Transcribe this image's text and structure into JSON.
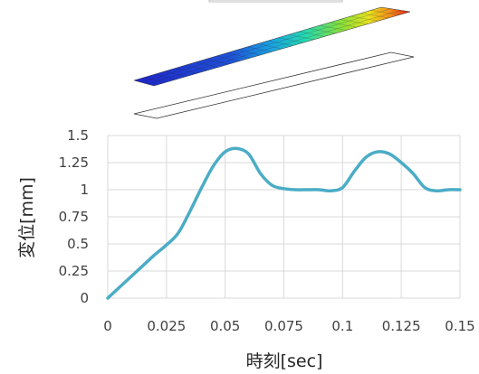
{
  "colors": {
    "series": "#4bacc6",
    "grid": "#d9d9d9",
    "text": "#404040",
    "plate_cold": "#1f24c9",
    "plate_hot": "#e01b1b"
  },
  "model_views": [
    {
      "name": "deformed-plate",
      "style": "contour-colormap"
    },
    {
      "name": "undeformed-plate",
      "style": "outline"
    }
  ],
  "chart_data": {
    "type": "line",
    "xlabel": "時刻[sec]",
    "ylabel": "変位[mm]",
    "xlim": [
      0,
      0.15
    ],
    "ylim": [
      0,
      1.5
    ],
    "x_ticks": [
      0,
      0.025,
      0.05,
      0.075,
      0.1,
      0.125,
      0.15
    ],
    "x_tick_labels": [
      "0",
      "0.025",
      "0.05",
      "0.075",
      "0.1",
      "0.125",
      "0.15"
    ],
    "y_ticks": [
      0,
      0.25,
      0.5,
      0.75,
      1,
      1.25,
      1.5
    ],
    "y_tick_labels": [
      "0",
      "0.25",
      "0.5",
      "0.75",
      "1",
      "1.25",
      "1.5"
    ],
    "grid": true,
    "legend": "none",
    "series": [
      {
        "x": [
          0,
          0.005,
          0.01,
          0.015,
          0.02,
          0.025,
          0.03,
          0.035,
          0.04,
          0.045,
          0.05,
          0.055,
          0.06,
          0.065,
          0.07,
          0.075,
          0.08,
          0.085,
          0.09,
          0.095,
          0.1,
          0.105,
          0.11,
          0.115,
          0.12,
          0.125,
          0.13,
          0.135,
          0.14,
          0.145,
          0.15
        ],
        "values": [
          0,
          0.1,
          0.2,
          0.3,
          0.4,
          0.49,
          0.6,
          0.8,
          1.02,
          1.22,
          1.35,
          1.38,
          1.33,
          1.15,
          1.04,
          1.01,
          1.0,
          1.0,
          1.0,
          0.99,
          1.02,
          1.17,
          1.3,
          1.35,
          1.33,
          1.25,
          1.15,
          1.02,
          0.99,
          1.0,
          1.0
        ]
      }
    ]
  }
}
